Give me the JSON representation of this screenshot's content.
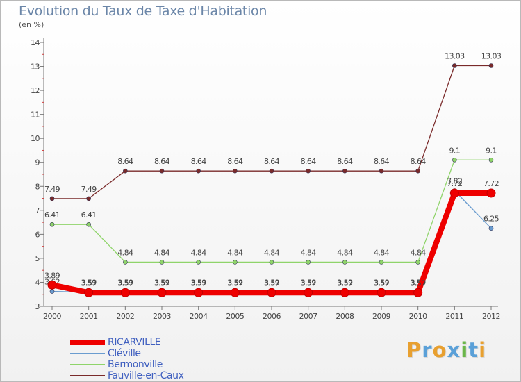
{
  "title": "Evolution du Taux de Taxe d'Habitation",
  "subtitle": "(en %)",
  "logo": {
    "text": "Proxiti",
    "letters": [
      "P",
      "r",
      "o",
      "x",
      "i",
      "t",
      "i"
    ],
    "colors": [
      "#e8a030",
      "#5aa0d8",
      "#e8a030",
      "#5aa0d8",
      "#6ab64a",
      "#5aa0d8",
      "#e8a030"
    ]
  },
  "chart_data": {
    "type": "line",
    "x": [
      "2000",
      "2001",
      "2002",
      "2003",
      "2004",
      "2005",
      "2006",
      "2007",
      "2008",
      "2009",
      "2010",
      "2011",
      "2012"
    ],
    "ylim": [
      3,
      14
    ],
    "yticks": [
      3,
      4,
      5,
      6,
      7,
      8,
      9,
      10,
      11,
      12,
      13,
      14
    ],
    "grid": false,
    "legend_position": "bottom-left",
    "series": [
      {
        "name": "Fauville-en-Caux",
        "color": "#7a2a2a",
        "width": 1.3,
        "values": [
          7.49,
          7.49,
          8.64,
          8.64,
          8.64,
          8.64,
          8.64,
          8.64,
          8.64,
          8.64,
          8.64,
          13.03,
          13.03
        ],
        "labels": [
          "7.49",
          "7.49",
          "8.64",
          "8.64",
          "8.64",
          "8.64",
          "8.64",
          "8.64",
          "8.64",
          "8.64",
          "8.64",
          "13.03",
          "13.03"
        ]
      },
      {
        "name": "Bermonville",
        "color": "#8fd46a",
        "width": 1.3,
        "values": [
          6.41,
          6.41,
          4.84,
          4.84,
          4.84,
          4.84,
          4.84,
          4.84,
          4.84,
          4.84,
          4.84,
          9.1,
          9.1
        ],
        "labels": [
          "6.41",
          "6.41",
          "4.84",
          "4.84",
          "4.84",
          "4.84",
          "4.84",
          "4.84",
          "4.84",
          "4.84",
          "4.84",
          "9.1",
          "9.1"
        ]
      },
      {
        "name": "Cléville",
        "color": "#6a9ccf",
        "width": 1.3,
        "values": [
          3.62,
          3.59,
          3.59,
          3.59,
          3.59,
          3.59,
          3.59,
          3.59,
          3.59,
          3.59,
          3.59,
          7.82,
          6.25
        ],
        "labels": [
          "3.62",
          "3.59",
          "3.59",
          "3.59",
          "3.59",
          "3.59",
          "3.59",
          "3.59",
          "3.59",
          "3.59",
          "3.59",
          "7.82",
          "6.25"
        ]
      },
      {
        "name": "RICARVILLE",
        "color": "#ee0000",
        "width": 8,
        "values": [
          3.89,
          3.57,
          3.57,
          3.57,
          3.57,
          3.57,
          3.57,
          3.57,
          3.57,
          3.57,
          3.57,
          7.72,
          7.72
        ],
        "labels": [
          "3.89",
          "3.57",
          "3.57",
          "3.57",
          "3.57",
          "3.57",
          "3.57",
          "3.57",
          "3.57",
          "3.57",
          "3.57",
          "7.72",
          "7.72"
        ]
      }
    ],
    "legend": [
      "RICARVILLE",
      "Cléville",
      "Bermonville",
      "Fauville-en-Caux"
    ]
  }
}
